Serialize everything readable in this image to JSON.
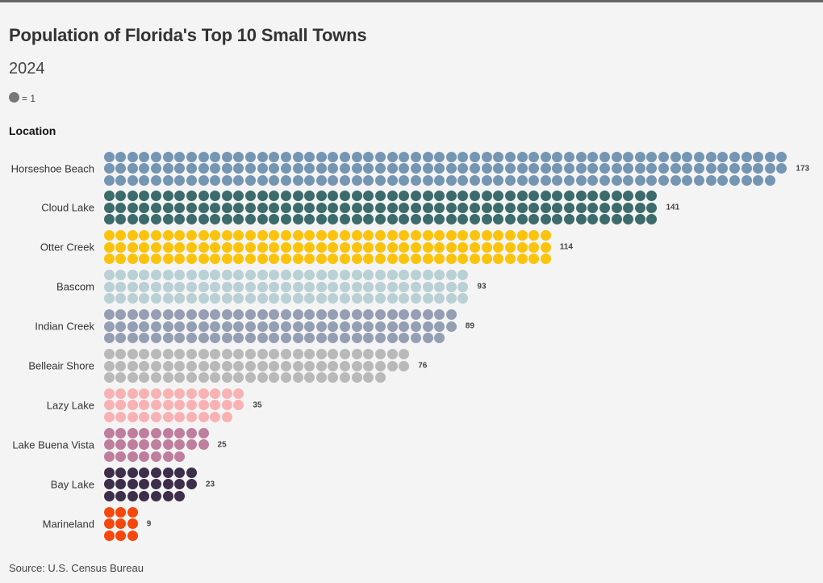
{
  "header": {
    "title": "Population of Florida's Top 10 Small Towns",
    "subtitle": "2024",
    "legend_text": "= 1",
    "legend_color": "#777777"
  },
  "footer": {
    "source": "Source: U.S. Census Bureau"
  },
  "chart_data": {
    "type": "waffle-pictogram",
    "title": "Population of Florida's Top 10 Small Towns",
    "subtitle": "2024",
    "unit": "1 dot = 1 person",
    "category_label": "Location",
    "rows_per_category": 3,
    "categories": [
      "Horseshoe Beach",
      "Cloud Lake",
      "Otter Creek",
      "Bascom",
      "Indian Creek",
      "Belleair Shore",
      "Lazy Lake",
      "Lake Buena Vista",
      "Bay Lake",
      "Marineland"
    ],
    "values": [
      173,
      141,
      114,
      93,
      89,
      76,
      35,
      25,
      23,
      9
    ],
    "colors": [
      "#7596b3",
      "#3c6b6b",
      "#fcc30c",
      "#b9d0d4",
      "#959fb3",
      "#b9b9b9",
      "#f9b2b4",
      "#c07e9e",
      "#3d2e4a",
      "#f5470c"
    ],
    "source": "Source: U.S. Census Bureau"
  }
}
